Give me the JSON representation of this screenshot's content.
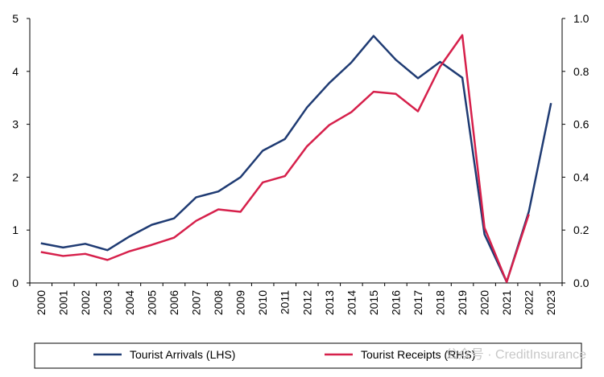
{
  "chart_data": {
    "type": "line",
    "title": "",
    "xlabel": "",
    "ylabel": "",
    "x": [
      "2000",
      "2001",
      "2002",
      "2003",
      "2004",
      "2005",
      "2006",
      "2007",
      "2008",
      "2009",
      "2010",
      "2011",
      "2012",
      "2013",
      "2014",
      "2015",
      "2016",
      "2017",
      "2018",
      "2019",
      "2020",
      "2021",
      "2022",
      "2023"
    ],
    "ylim_left": [
      0,
      5
    ],
    "ylim_right": [
      0.0,
      1.0
    ],
    "yticks_left": [
      "0",
      "1",
      "2",
      "3",
      "4",
      "5"
    ],
    "yticks_right": [
      "0.0",
      "0.2",
      "0.4",
      "0.6",
      "0.8",
      "1.0"
    ],
    "grid": false,
    "legend_position": "bottom",
    "series": [
      {
        "name": "Tourist Arrivals (LHS)",
        "axis": "left",
        "color": "#1f3b73",
        "values": [
          0.75,
          0.67,
          0.74,
          0.62,
          0.88,
          1.1,
          1.22,
          1.62,
          1.73,
          2.0,
          2.5,
          2.72,
          3.32,
          3.78,
          4.17,
          4.67,
          4.22,
          3.87,
          4.18,
          3.88,
          0.92,
          0.02,
          1.35,
          3.4
        ]
      },
      {
        "name": "Tourist Receipts (RHS)",
        "axis": "right",
        "color": "#d6204b",
        "values": [
          0.117,
          0.102,
          0.11,
          0.087,
          0.12,
          0.144,
          0.171,
          0.235,
          0.278,
          0.269,
          0.38,
          0.404,
          0.517,
          0.597,
          0.646,
          0.723,
          0.715,
          0.649,
          0.818,
          0.937,
          0.209,
          0.004,
          0.26,
          null
        ]
      }
    ]
  },
  "watermark": "公众号 · CreditInsurance"
}
